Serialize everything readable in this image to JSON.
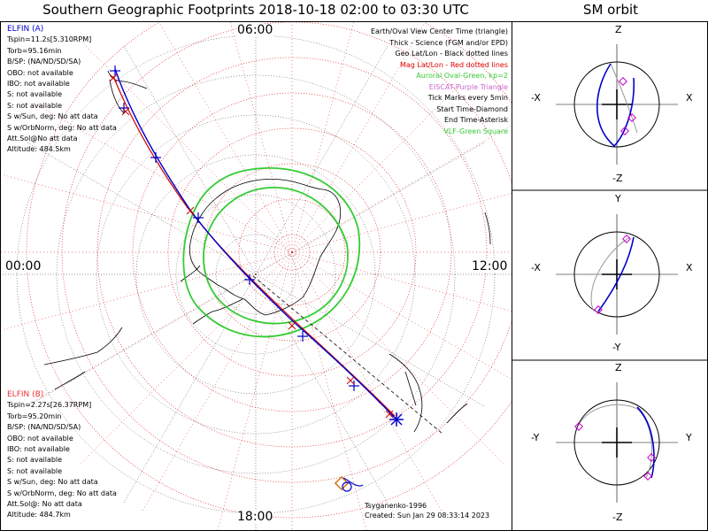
{
  "title": "Southern Geographic Footprints 2018-10-18 02:00 to 03:30 UTC",
  "sm_title": "SM orbit",
  "mlt_labels": {
    "top": "06:00",
    "left": "00:00",
    "right": "12:00",
    "bottom": "18:00"
  },
  "elfin_a": {
    "header": "ELFIN (A)",
    "lines": [
      "Tspin=11.2s[5.310RPM]",
      "Torb=95.16min",
      "B/SP: (NA/ND/SD/SA)",
      "OBO: not available",
      "IBO: not available",
      "S: not available",
      "S: not available",
      "S w/Sun, deg: No att data",
      "S w/OrbNorm, deg: No att data",
      "Att.Sol@No att data",
      "Altitude: 484.5km"
    ]
  },
  "elfin_b": {
    "header": "ELFIN (B)",
    "lines": [
      "Tspin=2.27s[26.37RPM]",
      "Torb=95.20min",
      "B/SP: (NA/ND/SD/SA)",
      "OBO: not available",
      "IBO: not available",
      "S: not available",
      "S: not available",
      "S w/Sun, deg: No att data",
      "S w/OrbNorm, deg: No att data",
      "Att.Sol@: No att data",
      "Altitude: 484.7km"
    ]
  },
  "legend": [
    {
      "text": "Earth/Oval View Center Time (triangle)",
      "color": "#000000"
    },
    {
      "text": "Thick - Science (FGM and/or EPD)",
      "color": "#000000"
    },
    {
      "text": "Geo Lat/Lon - Black dotted lines",
      "color": "#000000"
    },
    {
      "text": "Mag Lat/Lon - Red dotted lines",
      "color": "#e00000"
    },
    {
      "text": "Auroral Oval-Green, kp=2",
      "color": "#33cc33"
    },
    {
      "text": "EISCAT-Purple Triangle",
      "color": "#cc66cc"
    },
    {
      "text": "Tick Marks every 5min",
      "color": "#000000"
    },
    {
      "text": "Start Time-Diamond",
      "color": "#000000"
    },
    {
      "text": "End Time-Asterisk",
      "color": "#000000"
    },
    {
      "text": "VLF-Green Square",
      "color": "#33cc33"
    }
  ],
  "credit": {
    "model": "Tsyganenko-1996",
    "created": "Created: Sun Jan 29 08:33:14 2023"
  },
  "sm_panels": [
    {
      "top": "Z",
      "bottom": "-Z",
      "left": "-X",
      "right": "X"
    },
    {
      "top": "Y",
      "bottom": "-Y",
      "left": "-X",
      "right": "X"
    },
    {
      "top": "Z",
      "bottom": "-Z",
      "left": "-Y",
      "right": "Y"
    }
  ],
  "colors": {
    "elfin_a": "#0000cc",
    "elfin_b": "#cc0000",
    "oval": "#33cc33",
    "mag_grid": "#dd0000",
    "geo_grid": "#333333"
  }
}
